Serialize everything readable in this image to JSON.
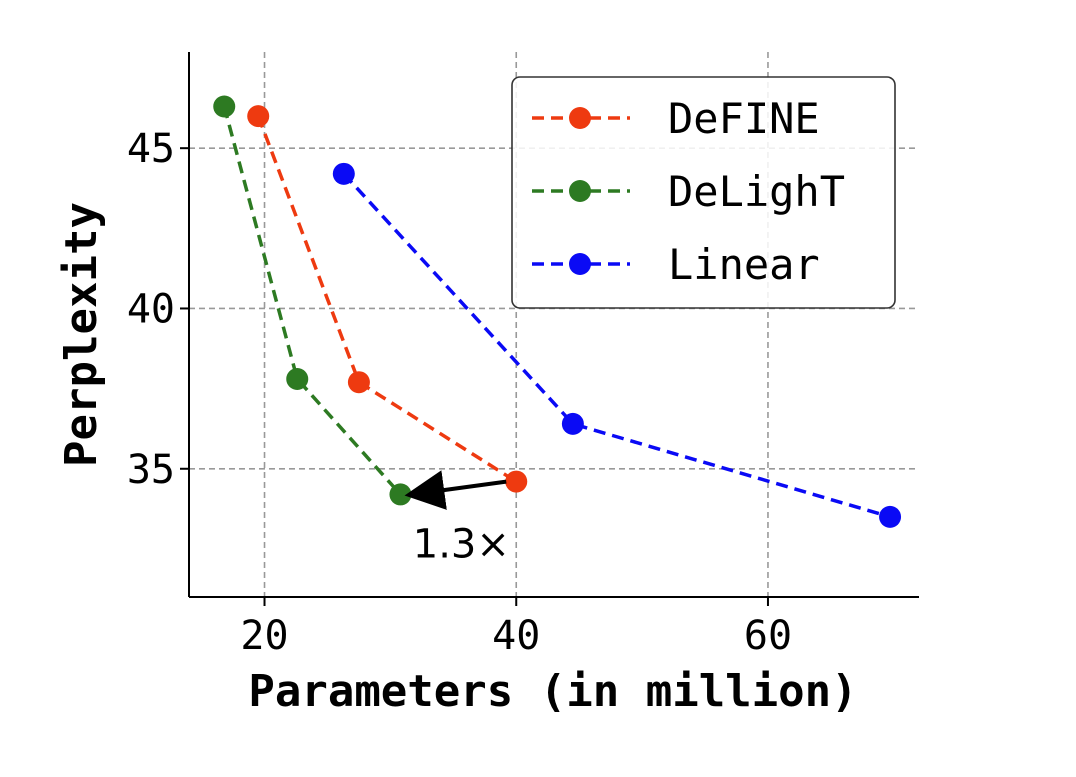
{
  "chart_data": {
    "type": "line",
    "xlabel": "Parameters (in million)",
    "ylabel": "Perplexity",
    "xlim": [
      14,
      72
    ],
    "ylim": [
      31,
      48
    ],
    "xticks": [
      20,
      40,
      60
    ],
    "yticks": [
      35,
      40,
      45
    ],
    "grid": true,
    "legend_position": "top-right",
    "series": [
      {
        "name": "DeFINE",
        "color": "#ee3a10",
        "x": [
          19.5,
          27.5,
          40
        ],
        "y": [
          46.0,
          37.7,
          34.6
        ]
      },
      {
        "name": "DeLighT",
        "color": "#2d7a22",
        "x": [
          16.8,
          22.6,
          30.8
        ],
        "y": [
          46.3,
          37.8,
          34.2
        ]
      },
      {
        "name": "Linear",
        "color": "#0a0af5",
        "x": [
          26.3,
          44.5,
          69.7
        ],
        "y": [
          44.2,
          36.4,
          33.5
        ]
      }
    ],
    "annotations": [
      {
        "text": "1.3×",
        "arrow_from": [
          40,
          34.6
        ],
        "arrow_to": [
          30.8,
          34.2
        ]
      }
    ]
  }
}
